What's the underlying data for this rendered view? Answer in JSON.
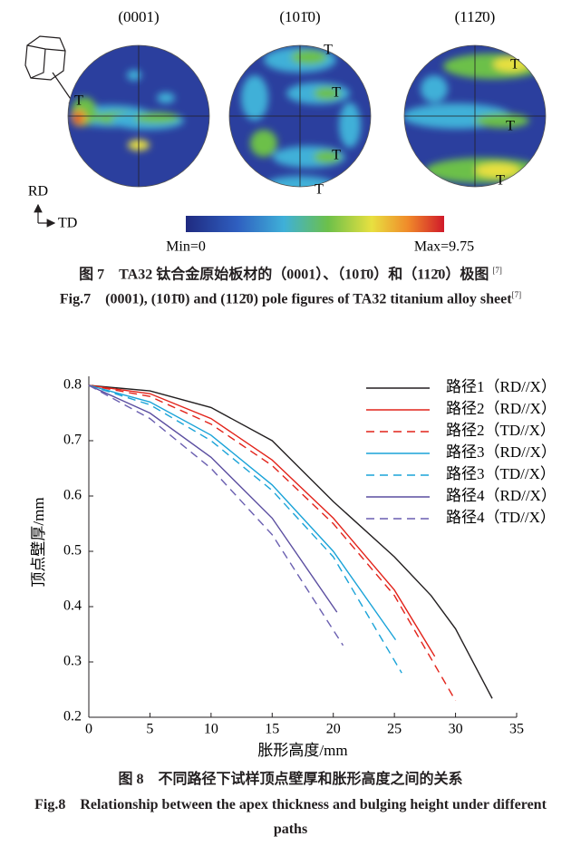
{
  "figure7": {
    "pole_figures": [
      {
        "label": "(0001)",
        "markers": [
          "T"
        ]
      },
      {
        "label": "(101̄0)",
        "markers": [
          "T",
          "T",
          "T",
          "T"
        ]
      },
      {
        "label": "(112̄0)",
        "markers": [
          "T",
          "T",
          "T"
        ]
      }
    ],
    "axes": {
      "rd": "RD",
      "td": "TD"
    },
    "colorbar": {
      "min": "Min=0",
      "max": "Max=9.75"
    },
    "caption_cn": "图 7　TA32 钛合金原始板材的（0001）、（101̄0）和（112̄0）极图",
    "caption_en": "Fig.7　(0001), (101̄0) and (112̄0) pole figures of TA32 titanium alloy sheet",
    "ref": "[7]"
  },
  "chart_data": {
    "type": "line",
    "x_label": "胀形高度/mm",
    "y_label": "顶点壁厚/mm",
    "xlim": [
      0,
      35
    ],
    "xticks": [
      0,
      5,
      10,
      15,
      20,
      25,
      30,
      35
    ],
    "ylim": [
      0.2,
      0.8
    ],
    "yticks": [
      0.2,
      0.3,
      0.4,
      0.5,
      0.6,
      0.7,
      0.8
    ],
    "legend": "upper right",
    "series": [
      {
        "name": "路径1（RD//X）",
        "color": "#231f20",
        "dashed": false,
        "x": [
          0,
          5,
          10,
          15,
          20,
          25,
          28,
          30,
          33
        ],
        "values": [
          0.8,
          0.79,
          0.76,
          0.7,
          0.59,
          0.49,
          0.42,
          0.36,
          0.234
        ]
      },
      {
        "name": "路径2（RD//X）",
        "color": "#e2231a",
        "dashed": false,
        "x": [
          0,
          5,
          10,
          15,
          20,
          25,
          28.3
        ],
        "values": [
          0.8,
          0.785,
          0.74,
          0.665,
          0.56,
          0.43,
          0.31
        ]
      },
      {
        "name": "路径2（TD//X）",
        "color": "#e2231a",
        "dashed": true,
        "x": [
          0,
          5,
          10,
          15,
          20,
          25,
          30
        ],
        "values": [
          0.8,
          0.78,
          0.73,
          0.655,
          0.55,
          0.42,
          0.23
        ]
      },
      {
        "name": "路径3（RD//X）",
        "color": "#1aa3d8",
        "dashed": false,
        "x": [
          0,
          5,
          10,
          15,
          20,
          25.1
        ],
        "values": [
          0.8,
          0.77,
          0.71,
          0.62,
          0.5,
          0.34
        ]
      },
      {
        "name": "路径3（TD//X）",
        "color": "#1aa3d8",
        "dashed": true,
        "x": [
          0,
          5,
          10,
          15,
          20,
          25.6
        ],
        "values": [
          0.8,
          0.765,
          0.7,
          0.61,
          0.49,
          0.28
        ]
      },
      {
        "name": "路径4（RD//X）",
        "color": "#5b4ea0",
        "dashed": false,
        "x": [
          0,
          5,
          10,
          15,
          20.3
        ],
        "values": [
          0.8,
          0.75,
          0.67,
          0.56,
          0.39
        ]
      },
      {
        "name": "路径4（TD//X）",
        "color": "#6a5fb0",
        "dashed": true,
        "x": [
          0,
          5,
          10,
          15,
          20.8
        ],
        "values": [
          0.8,
          0.74,
          0.65,
          0.53,
          0.33
        ]
      }
    ]
  },
  "figure8": {
    "caption_cn": "图 8　不同路径下试样顶点壁厚和胀形高度之间的关系",
    "caption_en": "Fig.8　Relationship between the apex thickness and bulging height under different paths"
  }
}
